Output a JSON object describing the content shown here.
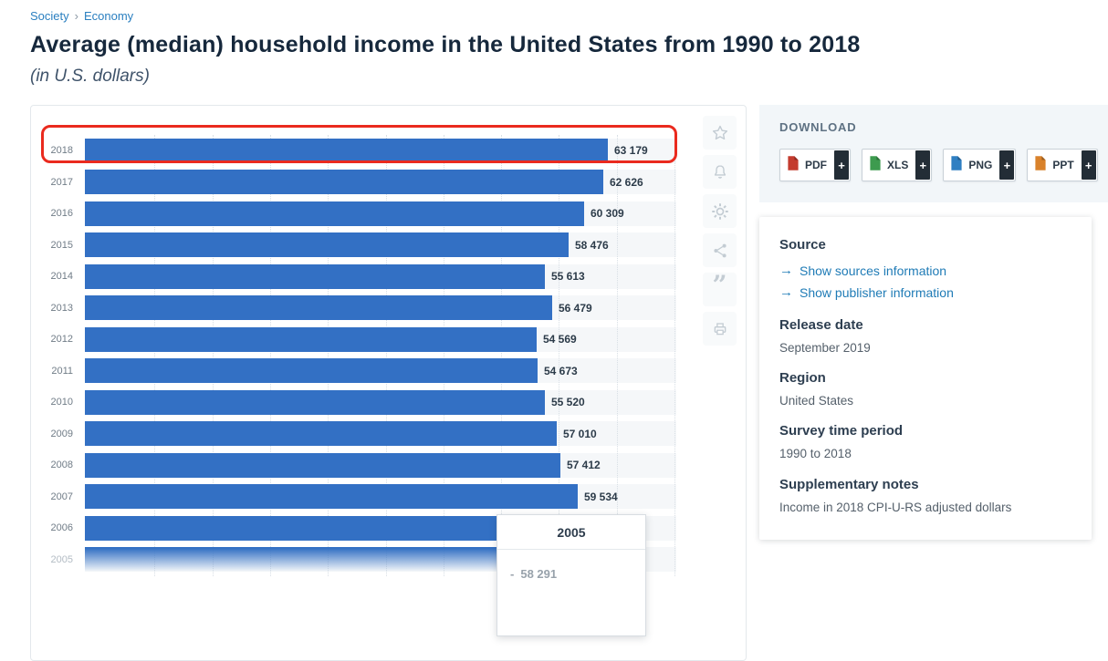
{
  "breadcrumb": {
    "items": [
      {
        "label": "Society"
      },
      {
        "label": "Economy"
      }
    ],
    "separator": "›"
  },
  "title": "Average (median) household income in the United States from 1990 to 2018",
  "subtitle": "(in U.S. dollars)",
  "chart_data": {
    "type": "bar",
    "orientation": "horizontal",
    "title": "Average (median) household income in the United States from 1990 to 2018",
    "unit": "U.S. dollars",
    "axis_max": 63179,
    "grid": "vertical-dotted",
    "bar_color": "#3370c4",
    "highlight_color": "#ea2a1e",
    "categories": [
      "2018",
      "2017",
      "2016",
      "2015",
      "2014",
      "2013",
      "2012",
      "2011",
      "2010",
      "2009",
      "2008",
      "2007",
      "2006",
      "2005"
    ],
    "rows": [
      {
        "year": "2018",
        "value": 63179,
        "label": "63 179",
        "highlighted": true
      },
      {
        "year": "2017",
        "value": 62626,
        "label": "62 626"
      },
      {
        "year": "2016",
        "value": 60309,
        "label": "60 309"
      },
      {
        "year": "2015",
        "value": 58476,
        "label": "58 476"
      },
      {
        "year": "2014",
        "value": 55613,
        "label": "55 613"
      },
      {
        "year": "2013",
        "value": 56479,
        "label": "56 479"
      },
      {
        "year": "2012",
        "value": 54569,
        "label": "54 569"
      },
      {
        "year": "2011",
        "value": 54673,
        "label": "54 673"
      },
      {
        "year": "2010",
        "value": 55520,
        "label": "55 520"
      },
      {
        "year": "2009",
        "value": 57010,
        "label": "57 010"
      },
      {
        "year": "2008",
        "value": 57412,
        "label": "57 412"
      },
      {
        "year": "2007",
        "value": 59534,
        "label": "59 534"
      },
      {
        "year": "2006",
        "value": null,
        "label": "",
        "width_frac": 0.8,
        "covered_by_tooltip": true
      },
      {
        "year": "2005",
        "value": 58291,
        "label": "",
        "faded": true
      }
    ],
    "tooltip": {
      "year": "2005",
      "marker": "-",
      "value": "58 291"
    }
  },
  "toolbar": {
    "items": [
      {
        "name": "favorite",
        "icon": "star-icon"
      },
      {
        "name": "alert",
        "icon": "bell-icon"
      },
      {
        "name": "settings",
        "icon": "gear-icon"
      },
      {
        "name": "share",
        "icon": "share-icon"
      },
      {
        "name": "cite",
        "icon": "quote-icon",
        "glyph": "”"
      },
      {
        "name": "print",
        "icon": "print-icon"
      }
    ]
  },
  "download": {
    "heading": "DOWNLOAD",
    "buttons": [
      {
        "label": "PDF",
        "plus": "+",
        "color": "#c43b2e"
      },
      {
        "label": "XLS",
        "plus": "+",
        "color": "#3d9b4f"
      },
      {
        "label": "PNG",
        "plus": "+",
        "color": "#2f7fc2"
      },
      {
        "label": "PPT",
        "plus": "+",
        "color": "#d9822b"
      }
    ]
  },
  "info": {
    "source_heading": "Source",
    "link_arrow": "→",
    "links": [
      {
        "label": "Show sources information"
      },
      {
        "label": "Show publisher information"
      }
    ],
    "sections": [
      {
        "heading": "Release date",
        "value": "September 2019"
      },
      {
        "heading": "Region",
        "value": "United States"
      },
      {
        "heading": "Survey time period",
        "value": "1990 to 2018"
      },
      {
        "heading": "Supplementary notes",
        "value": "Income in 2018 CPI-U-RS adjusted dollars"
      }
    ]
  }
}
